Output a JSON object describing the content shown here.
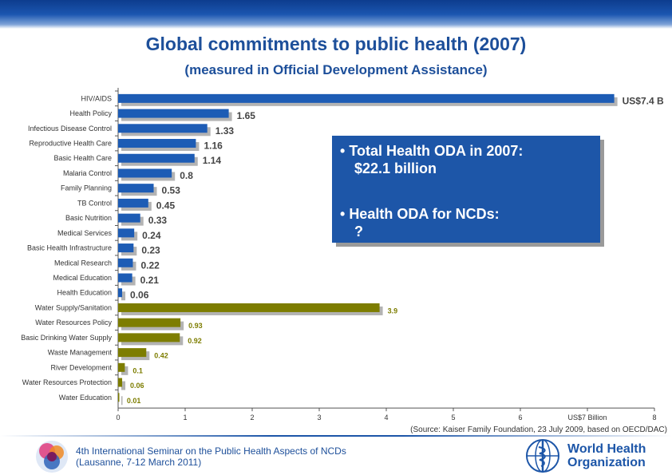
{
  "header": {
    "title": "Global commitments to public health (2007)",
    "subtitle": "(measured in Official Development Assistance)"
  },
  "chart_data": {
    "type": "bar",
    "orientation": "horizontal",
    "title": "Global commitments to public health (2007)",
    "subtitle": "(measured in Official Development Assistance)",
    "unit": "US$ billion",
    "xlim": [
      0,
      8
    ],
    "x_ticks": [
      "0",
      "1",
      "2",
      "3",
      "4",
      "5",
      "6",
      "US$7 Billion",
      "8"
    ],
    "categories": [
      "HIV/AIDS",
      "Health Policy",
      "Infectious Disease Control",
      "Reproductive Health Care",
      "Basic Health Care",
      "Malaria Control",
      "Family Planning",
      "TB Control",
      "Basic Nutrition",
      "Medical Services",
      "Basic Health Infrastructure",
      "Medical Research",
      "Medical Education",
      "Health Education",
      "Water Supply/Sanitation",
      "Water Resources Policy",
      "Basic Drinking Water Supply",
      "Waste Management",
      "River Development",
      "Water Resources Protection",
      "Water Education"
    ],
    "values": [
      7.4,
      1.65,
      1.33,
      1.16,
      1.14,
      0.8,
      0.53,
      0.45,
      0.33,
      0.24,
      0.23,
      0.22,
      0.21,
      0.06,
      3.9,
      0.93,
      0.92,
      0.42,
      0.1,
      0.06,
      0.01
    ],
    "labels": [
      "US$7.4 B",
      "1.65",
      "1.33",
      "1.16",
      "1.14",
      "0.8",
      "0.53",
      "0.45",
      "0.33",
      "0.24",
      "0.23",
      "0.22",
      "0.21",
      "0.06",
      "3.9",
      "0.93",
      "0.92",
      "0.42",
      "0.1",
      "0.06",
      "0.01"
    ],
    "groups": [
      "health",
      "health",
      "health",
      "health",
      "health",
      "health",
      "health",
      "health",
      "health",
      "health",
      "health",
      "health",
      "health",
      "health",
      "water",
      "water",
      "water",
      "water",
      "water",
      "water",
      "water"
    ],
    "group_colors": {
      "health": "#1d5cb5",
      "water": "#7d7d00"
    },
    "shadow_color": "#b3b3b3"
  },
  "infobox": {
    "bullet1": "Total Health ODA in 2007:",
    "bullet1_value": "$22.1 billion",
    "bullet2": "Health ODA for NCDs:",
    "bullet2_value": "?"
  },
  "source": "(Source: Kaiser Family Foundation, 23 July 2009, based on OECD/DAC)",
  "footer": {
    "line1": "4th International Seminar on the Public Health Aspects of NCDs",
    "line2": "(Lausanne, 7-12 March 2011)",
    "who_line1": "World Health",
    "who_line2": "Organization"
  }
}
